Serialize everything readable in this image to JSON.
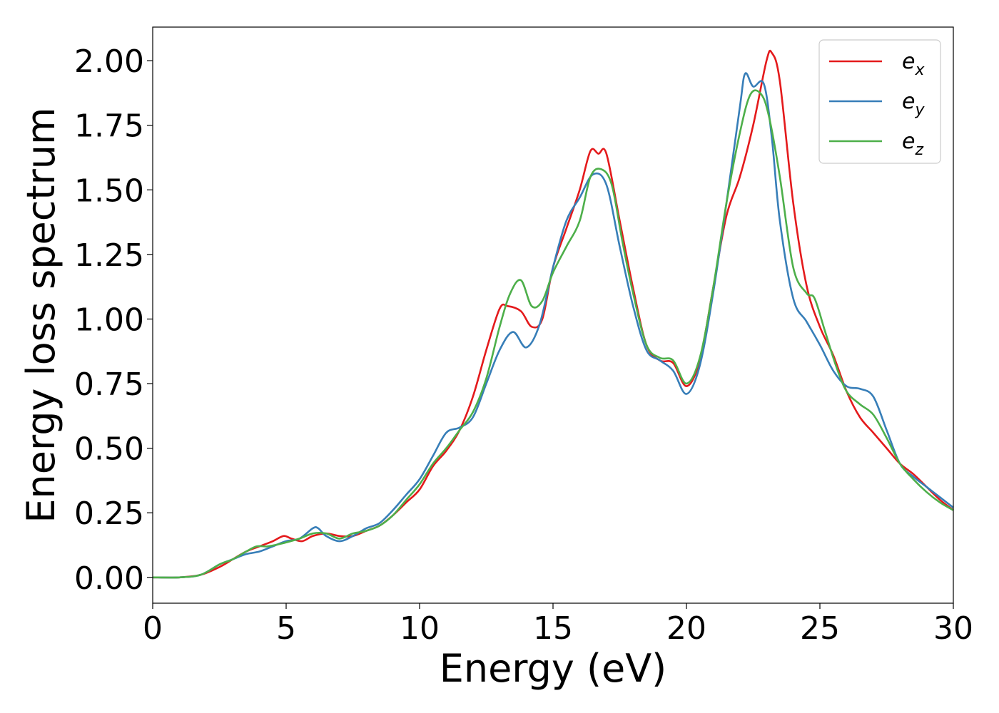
{
  "chart_data": {
    "type": "line",
    "title": "",
    "xlabel": "Energy (eV)",
    "ylabel": "Energy loss spectrum",
    "xlim": [
      0,
      30
    ],
    "ylim": [
      -0.1,
      2.13
    ],
    "xticks": [
      "0",
      "5",
      "10",
      "15",
      "20",
      "25",
      "30"
    ],
    "yticks": [
      "0.00",
      "0.25",
      "0.50",
      "0.75",
      "1.00",
      "1.25",
      "1.50",
      "1.75",
      "2.00"
    ],
    "grid": false,
    "legend_position": "top-right",
    "series": [
      {
        "name": "e_x",
        "label_base": "e",
        "label_sub": "x",
        "color": "#e41a1c",
        "x": [
          0,
          1,
          1.8,
          2.5,
          3,
          3.5,
          4,
          4.5,
          4.9,
          5.2,
          5.6,
          6,
          6.5,
          7,
          7.5,
          8,
          8.5,
          9,
          9.5,
          10,
          10.5,
          11,
          11.5,
          12,
          12.5,
          13,
          13.3,
          13.8,
          14.2,
          14.6,
          15,
          15.5,
          16,
          16.4,
          16.7,
          17,
          17.5,
          18,
          18.5,
          19,
          19.5,
          20,
          20.5,
          21,
          21.5,
          22,
          22.5,
          23,
          23.2,
          23.5,
          24,
          24.5,
          25,
          25.5,
          26,
          26.5,
          27,
          27.5,
          28,
          28.5,
          29,
          29.5,
          30
        ],
        "y": [
          0.0,
          0.0,
          0.01,
          0.04,
          0.07,
          0.1,
          0.12,
          0.14,
          0.16,
          0.15,
          0.14,
          0.16,
          0.17,
          0.16,
          0.16,
          0.18,
          0.2,
          0.24,
          0.29,
          0.34,
          0.43,
          0.49,
          0.57,
          0.7,
          0.88,
          1.04,
          1.05,
          1.03,
          0.97,
          1.0,
          1.2,
          1.35,
          1.5,
          1.65,
          1.64,
          1.64,
          1.38,
          1.12,
          0.9,
          0.84,
          0.83,
          0.74,
          0.84,
          1.12,
          1.4,
          1.55,
          1.75,
          2.0,
          2.03,
          1.92,
          1.45,
          1.13,
          0.97,
          0.86,
          0.72,
          0.62,
          0.56,
          0.5,
          0.44,
          0.4,
          0.35,
          0.3,
          0.26
        ]
      },
      {
        "name": "e_y",
        "label_base": "e",
        "label_sub": "y",
        "color": "#377eb8",
        "x": [
          0,
          1,
          1.8,
          2.5,
          3,
          3.5,
          4,
          4.5,
          5,
          5.5,
          6,
          6.2,
          6.5,
          7,
          7.5,
          8,
          8.5,
          9,
          9.5,
          10,
          10.5,
          11,
          11.5,
          12,
          12.5,
          13,
          13.5,
          14,
          14.5,
          15,
          15.5,
          16,
          16.5,
          17,
          17.5,
          18,
          18.5,
          19,
          19.5,
          20,
          20.5,
          21,
          21.5,
          22,
          22.2,
          22.5,
          22.9,
          23.2,
          23.5,
          24,
          24.5,
          25,
          25.5,
          26,
          26.5,
          27,
          27.5,
          28,
          28.5,
          29,
          29.5,
          30
        ],
        "y": [
          0.0,
          0.0,
          0.01,
          0.05,
          0.07,
          0.09,
          0.1,
          0.12,
          0.14,
          0.15,
          0.19,
          0.19,
          0.16,
          0.14,
          0.16,
          0.19,
          0.21,
          0.26,
          0.32,
          0.38,
          0.47,
          0.56,
          0.58,
          0.62,
          0.75,
          0.88,
          0.95,
          0.89,
          0.98,
          1.2,
          1.38,
          1.47,
          1.56,
          1.52,
          1.28,
          1.05,
          0.88,
          0.84,
          0.8,
          0.71,
          0.82,
          1.1,
          1.45,
          1.82,
          1.95,
          1.9,
          1.91,
          1.7,
          1.38,
          1.08,
          0.99,
          0.9,
          0.8,
          0.74,
          0.73,
          0.7,
          0.57,
          0.44,
          0.39,
          0.35,
          0.31,
          0.27
        ]
      },
      {
        "name": "e_z",
        "label_base": "e",
        "label_sub": "z",
        "color": "#4daf4a",
        "x": [
          0,
          1,
          1.8,
          2.5,
          3,
          3.5,
          3.9,
          4.3,
          4.8,
          5.5,
          6,
          6.5,
          7,
          7.5,
          8,
          8.5,
          9,
          9.5,
          10,
          10.5,
          11,
          11.5,
          12,
          12.5,
          13,
          13.4,
          13.8,
          14.2,
          14.6,
          15,
          15.5,
          16,
          16.4,
          16.8,
          17.2,
          17.6,
          18,
          18.5,
          19,
          19.5,
          20,
          20.5,
          21,
          21.5,
          22,
          22.4,
          22.8,
          23.1,
          23.5,
          24,
          24.5,
          24.8,
          25.2,
          25.6,
          26,
          26.5,
          27,
          27.5,
          28,
          28.5,
          29,
          29.5,
          30
        ],
        "y": [
          0.0,
          0.0,
          0.01,
          0.05,
          0.07,
          0.1,
          0.12,
          0.12,
          0.13,
          0.15,
          0.17,
          0.17,
          0.15,
          0.17,
          0.18,
          0.2,
          0.24,
          0.3,
          0.36,
          0.44,
          0.5,
          0.57,
          0.64,
          0.77,
          0.97,
          1.1,
          1.15,
          1.05,
          1.07,
          1.18,
          1.28,
          1.38,
          1.55,
          1.58,
          1.52,
          1.3,
          1.1,
          0.9,
          0.85,
          0.84,
          0.75,
          0.85,
          1.12,
          1.45,
          1.72,
          1.87,
          1.87,
          1.78,
          1.55,
          1.2,
          1.1,
          1.08,
          0.95,
          0.82,
          0.72,
          0.67,
          0.63,
          0.54,
          0.44,
          0.38,
          0.33,
          0.29,
          0.26
        ]
      }
    ]
  }
}
